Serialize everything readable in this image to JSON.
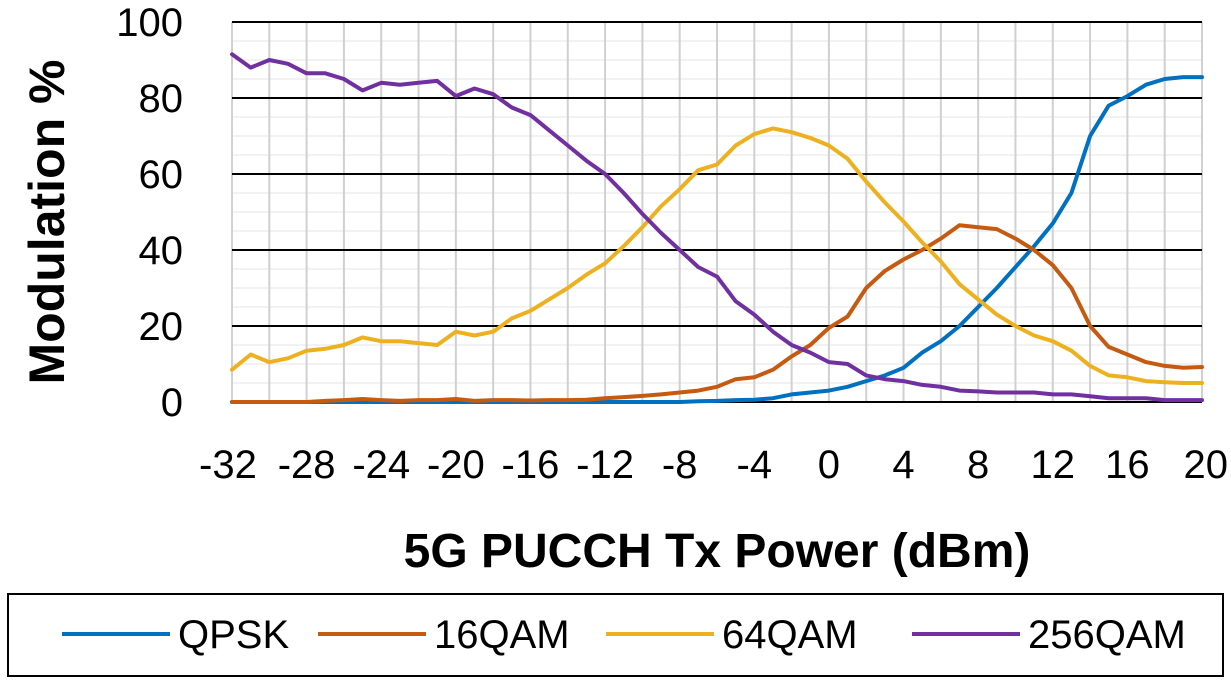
{
  "chart_data": {
    "type": "line",
    "title": "",
    "xlabel": "5G PUCCH Tx Power (dBm)",
    "ylabel": "Modulation %",
    "xlim": [
      -32,
      20
    ],
    "ylim": [
      0,
      100
    ],
    "x_ticks": [
      -32,
      -28,
      -24,
      -20,
      -16,
      -12,
      -8,
      -4,
      0,
      4,
      8,
      12,
      16,
      20
    ],
    "y_ticks": [
      0,
      20,
      40,
      60,
      80,
      100
    ],
    "x_tick_labels": [
      "-32",
      "-28",
      "-24",
      "-20",
      "-16",
      "-12",
      "-8",
      "-4",
      "0",
      "4",
      "8",
      "12",
      "16",
      "20"
    ],
    "y_tick_labels": [
      "0",
      "20",
      "40",
      "60",
      "80",
      "100"
    ],
    "grid": "major horizontal lines, minor vertical lines",
    "legend": "bottom",
    "x": [
      -32,
      -31,
      -30,
      -29,
      -28,
      -27,
      -26,
      -25,
      -24,
      -23,
      -22,
      -21,
      -20,
      -19,
      -18,
      -17,
      -16,
      -15,
      -14,
      -13,
      -12,
      -11,
      -10,
      -9,
      -8,
      -7,
      -6,
      -5,
      -4,
      -3,
      -2,
      -1,
      0,
      1,
      2,
      3,
      4,
      5,
      6,
      7,
      8,
      9,
      10,
      11,
      12,
      13,
      14,
      15,
      16,
      17,
      18,
      19,
      20
    ],
    "series": [
      {
        "name": "QPSK",
        "color": "#0070C0",
        "values": [
          0,
          0,
          0,
          0,
          0,
          0,
          0,
          0,
          0,
          0,
          0,
          0,
          0,
          0,
          0,
          0,
          0,
          0,
          0,
          0,
          0,
          0,
          0,
          0,
          0,
          0.2,
          0.3,
          0.5,
          0.6,
          1,
          2,
          2.5,
          3,
          4,
          5.5,
          7,
          9,
          13,
          16,
          20,
          25,
          30,
          35.5,
          41,
          47,
          55,
          70,
          78,
          80.5,
          83.5,
          85,
          85.5,
          85.5
        ]
      },
      {
        "name": "16QAM",
        "color": "#C55A11",
        "values": [
          0,
          0,
          0,
          0,
          0,
          0.3,
          0.5,
          0.8,
          0.5,
          0.3,
          0.5,
          0.5,
          0.8,
          0.3,
          0.5,
          0.5,
          0.4,
          0.5,
          0.5,
          0.6,
          1,
          1.3,
          1.6,
          2,
          2.5,
          3,
          4,
          6,
          6.5,
          8.5,
          12,
          15,
          19.5,
          22.5,
          30,
          34.5,
          37.5,
          40,
          43,
          46.5,
          46,
          45.5,
          43,
          40,
          36,
          30,
          20,
          14.5,
          12.5,
          10.5,
          9.5,
          9,
          9.2
        ]
      },
      {
        "name": "64QAM",
        "color": "#EDB120",
        "values": [
          8.5,
          12.5,
          10.5,
          11.5,
          13.5,
          14,
          15,
          17,
          16,
          16,
          15.5,
          15,
          18.5,
          17.5,
          18.5,
          22,
          24,
          27,
          30,
          33.5,
          36.5,
          41,
          46,
          51.5,
          56,
          61,
          62.5,
          67.5,
          70.5,
          72,
          71,
          69.5,
          67.5,
          64,
          58,
          52.5,
          47.5,
          42,
          37,
          31,
          27,
          23,
          20,
          17.5,
          16,
          13.5,
          9.5,
          7,
          6.5,
          5.5,
          5.2,
          5,
          5
        ]
      },
      {
        "name": "256QAM",
        "color": "#7030A0",
        "values": [
          91.5,
          88,
          90,
          89,
          86.5,
          86.5,
          85,
          82,
          84,
          83.5,
          84,
          84.5,
          80.5,
          82.5,
          81,
          77.5,
          75.5,
          71.5,
          67.5,
          63.5,
          60,
          55,
          49.5,
          44.5,
          40,
          35.5,
          33,
          26.5,
          23,
          18.5,
          15,
          13,
          10.5,
          10,
          7,
          6,
          5.5,
          4.5,
          4,
          3,
          2.8,
          2.5,
          2.5,
          2.5,
          2,
          2,
          1.5,
          1,
          1,
          1,
          0.5,
          0.5,
          0.5
        ]
      }
    ]
  }
}
